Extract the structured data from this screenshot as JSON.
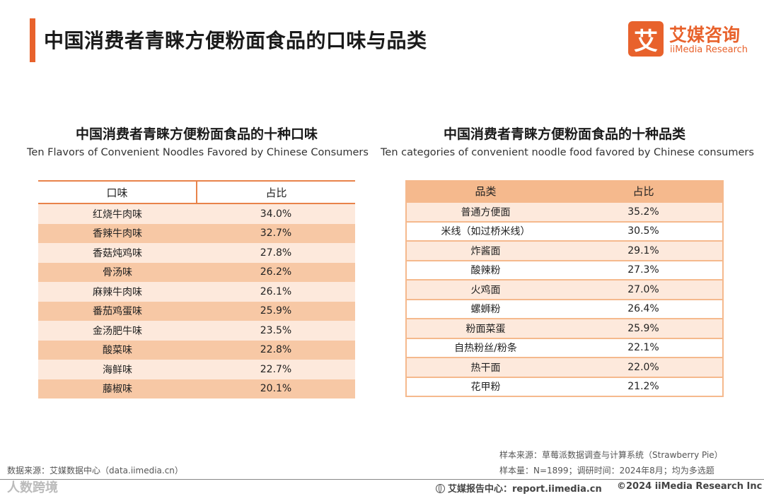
{
  "header": {
    "title": "中国消费者青睐方便粉面食品的口味与品类"
  },
  "logo": {
    "mark": "艾",
    "cn": "艾媒咨询",
    "en": "iiMedia Research"
  },
  "chart_data": [
    {
      "type": "table",
      "title": "中国消费者青睐方便粉面食品的十种口味",
      "subtitle": "Ten Flavors of Convenient Noodles Favored by Chinese Consumers",
      "columns": [
        "口味",
        "占比"
      ],
      "rows": [
        [
          "红烧牛肉味",
          "34.0%"
        ],
        [
          "香辣牛肉味",
          "32.7%"
        ],
        [
          "香菇炖鸡味",
          "27.8%"
        ],
        [
          "骨汤味",
          "26.2%"
        ],
        [
          "麻辣牛肉味",
          "26.1%"
        ],
        [
          "番茄鸡蛋味",
          "25.9%"
        ],
        [
          "金汤肥牛味",
          "23.5%"
        ],
        [
          "酸菜味",
          "22.8%"
        ],
        [
          "海鲜味",
          "22.7%"
        ],
        [
          "藤椒味",
          "20.1%"
        ]
      ]
    },
    {
      "type": "table",
      "title": "中国消费者青睐方便粉面食品的十种品类",
      "subtitle": "Ten categories of convenient noodle food favored by Chinese consumers",
      "columns": [
        "品类",
        "占比"
      ],
      "rows": [
        [
          "普通方便面",
          "35.2%"
        ],
        [
          "米线（如过桥米线）",
          "30.5%"
        ],
        [
          "炸酱面",
          "29.1%"
        ],
        [
          "酸辣粉",
          "27.3%"
        ],
        [
          "火鸡面",
          "27.0%"
        ],
        [
          "螺蛳粉",
          "26.4%"
        ],
        [
          "粉面菜蛋",
          "25.9%"
        ],
        [
          "自热粉丝/粉条",
          "22.1%"
        ],
        [
          "热干面",
          "22.0%"
        ],
        [
          "花甲粉",
          "21.2%"
        ]
      ]
    }
  ],
  "footer": {
    "sample_source": "样本来源：草莓派数据调查与计算系统（Strawberry Pie）",
    "sample_size": "样本量：N=1899；调研时间：2024年8月；均为多选题",
    "data_source": "数据来源：艾媒数据中心（data.iimedia.cn）",
    "report_center": "艾媒报告中心：report.iimedia.cn",
    "copyright": "©2024  iiMedia Research Inc",
    "watermark": "人数跨境"
  },
  "colors": {
    "accent": "#e8622c",
    "row_dark": "#f7c8a5",
    "row_light": "#fde9dc",
    "right_frame": "#f5b98d"
  }
}
